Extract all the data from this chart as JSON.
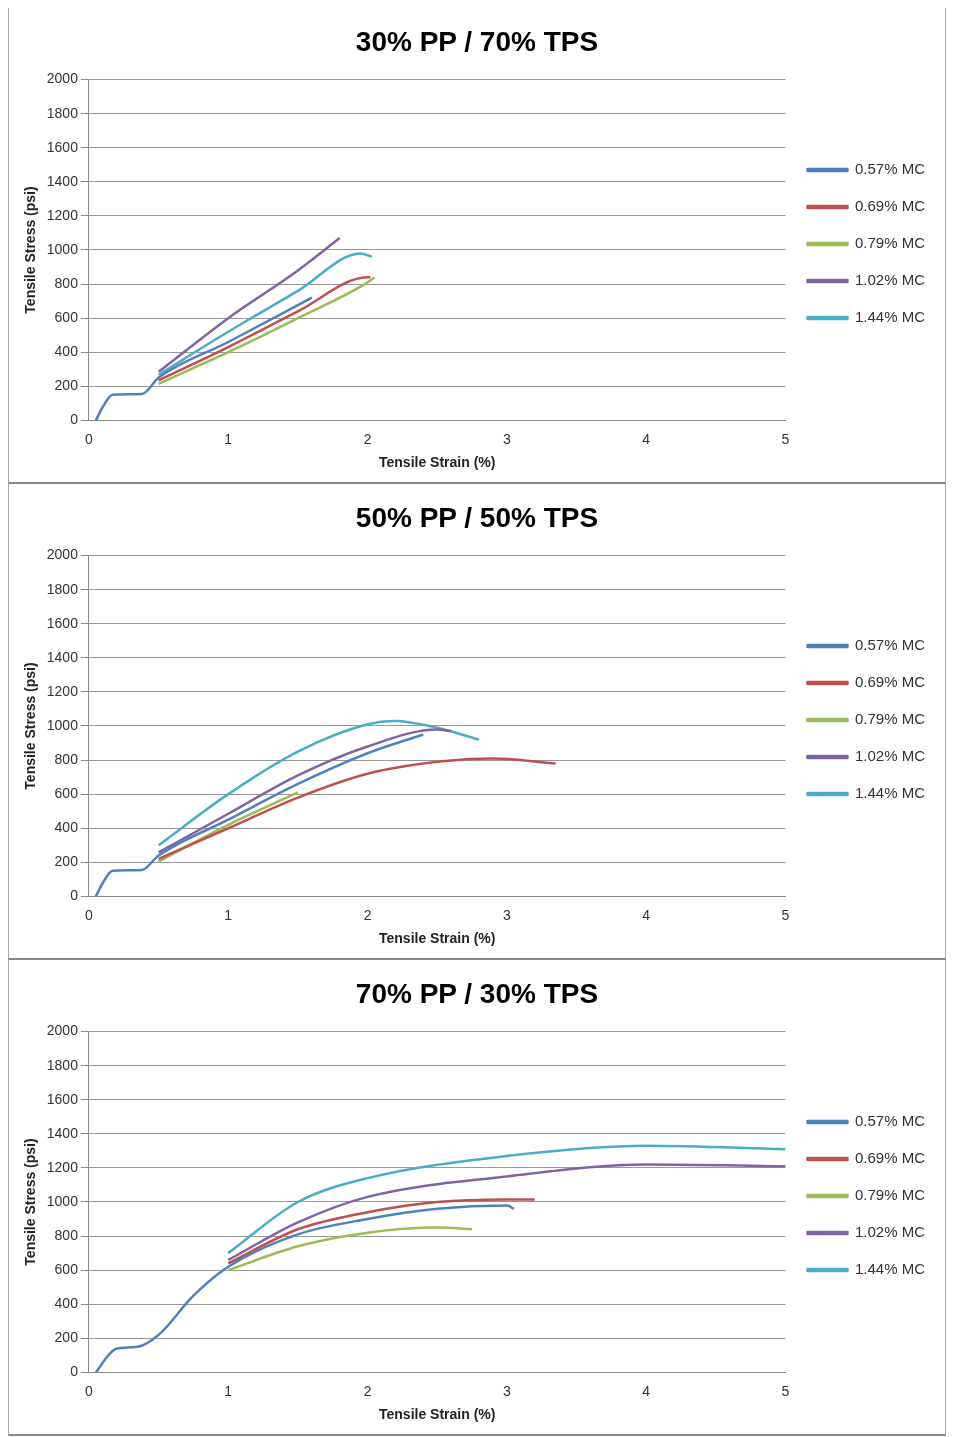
{
  "chart_data": [
    {
      "type": "line",
      "title": "30% PP / 70% TPS",
      "xlabel": "Tensile Strain (%)",
      "ylabel": "Tensile Stress (psi)",
      "xlim": [
        0,
        5
      ],
      "xticks": [
        0,
        1,
        2,
        3,
        4,
        5
      ],
      "ylim": [
        0,
        2000
      ],
      "yticks": [
        0,
        200,
        400,
        600,
        800,
        1000,
        1200,
        1400,
        1600,
        1800,
        2000
      ],
      "grid": "y",
      "legend": "right",
      "marker": "none",
      "series": [
        {
          "name": "0.57% MC",
          "color": "#4f81bd",
          "x": [
            0.05,
            0.1,
            0.17,
            0.38,
            0.5,
            1,
            1.6
          ],
          "values": [
            0,
            80,
            150,
            155,
            250,
            460,
            720
          ]
        },
        {
          "name": "0.69% MC",
          "color": "#c0504d",
          "x": [
            0.5,
            1,
            1.5,
            2,
            2.02
          ],
          "values": [
            235,
            430,
            640,
            840,
            840
          ]
        },
        {
          "name": "0.79% MC",
          "color": "#9bbb59",
          "x": [
            0.5,
            1,
            1.5,
            2,
            2.05
          ],
          "values": [
            215,
            400,
            600,
            810,
            840
          ]
        },
        {
          "name": "1.02% MC",
          "color": "#8064a2",
          "x": [
            0.5,
            1,
            1.5,
            1.8
          ],
          "values": [
            285,
            600,
            880,
            1070
          ]
        },
        {
          "name": "1.44% MC",
          "color": "#4bacc6",
          "x": [
            0.5,
            1,
            1.5,
            1.95,
            2.03
          ],
          "values": [
            268,
            520,
            760,
            980,
            960
          ]
        }
      ]
    },
    {
      "type": "line",
      "title": "50% PP / 50% TPS",
      "xlabel": "Tensile Strain (%)",
      "ylabel": "Tensile Stress (psi)",
      "xlim": [
        0,
        5
      ],
      "xticks": [
        0,
        1,
        2,
        3,
        4,
        5
      ],
      "ylim": [
        0,
        2000
      ],
      "yticks": [
        0,
        200,
        400,
        600,
        800,
        1000,
        1200,
        1400,
        1600,
        1800,
        2000
      ],
      "grid": "y",
      "legend": "right",
      "marker": "none",
      "series": [
        {
          "name": "0.57% MC",
          "color": "#4f81bd",
          "x": [
            0.05,
            0.1,
            0.17,
            0.38,
            0.5,
            1,
            1.5,
            2,
            2.4
          ],
          "values": [
            0,
            80,
            150,
            155,
            240,
            450,
            660,
            840,
            950
          ]
        },
        {
          "name": "0.69% MC",
          "color": "#c0504d",
          "x": [
            0.5,
            1,
            1.5,
            2,
            2.5,
            2.9,
            3.35
          ],
          "values": [
            220,
            400,
            580,
            720,
            790,
            810,
            780
          ]
        },
        {
          "name": "0.79% MC",
          "color": "#9bbb59",
          "x": [
            0.5,
            1,
            1.5
          ],
          "values": [
            205,
            420,
            610
          ]
        },
        {
          "name": "1.02% MC",
          "color": "#8064a2",
          "x": [
            0.5,
            1,
            1.5,
            2,
            2.5,
            2.6
          ],
          "values": [
            258,
            485,
            710,
            880,
            980,
            970
          ]
        },
        {
          "name": "1.44% MC",
          "color": "#4bacc6",
          "x": [
            0.5,
            1,
            1.5,
            2,
            2.2,
            2.5,
            2.8
          ],
          "values": [
            300,
            600,
            850,
            1010,
            1030,
            990,
            920
          ]
        }
      ]
    },
    {
      "type": "line",
      "title": "70% PP / 30% TPS",
      "xlabel": "Tensile Strain (%)",
      "ylabel": "Tensile Stress (psi)",
      "xlim": [
        0,
        5
      ],
      "xticks": [
        0,
        1,
        2,
        3,
        4,
        5
      ],
      "ylim": [
        0,
        2000
      ],
      "yticks": [
        0,
        200,
        400,
        600,
        800,
        1000,
        1200,
        1400,
        1600,
        1800,
        2000
      ],
      "grid": "y",
      "legend": "right",
      "marker": "none",
      "series": [
        {
          "name": "0.57% MC",
          "color": "#4f81bd",
          "x": [
            0.05,
            0.15,
            0.2,
            0.35,
            0.5,
            0.75,
            1,
            1.5,
            2,
            2.5,
            3,
            3.05
          ],
          "values": [
            0,
            110,
            140,
            150,
            220,
            450,
            620,
            810,
            900,
            960,
            980,
            960
          ]
        },
        {
          "name": "0.69% MC",
          "color": "#c0504d",
          "x": [
            1,
            1.5,
            2,
            2.5,
            3,
            3.2
          ],
          "values": [
            640,
            840,
            940,
            1000,
            1015,
            1015
          ]
        },
        {
          "name": "0.79% MC",
          "color": "#9bbb59",
          "x": [
            1,
            1.5,
            2,
            2.5,
            2.75
          ],
          "values": [
            600,
            740,
            820,
            850,
            840
          ]
        },
        {
          "name": "1.02% MC",
          "color": "#8064a2",
          "x": [
            1,
            1.5,
            2,
            3,
            4,
            5
          ],
          "values": [
            660,
            880,
            1030,
            1150,
            1220,
            1210
          ]
        },
        {
          "name": "1.44% MC",
          "color": "#4bacc6",
          "x": [
            1,
            1.5,
            2,
            3,
            4,
            5
          ],
          "values": [
            700,
            1000,
            1140,
            1270,
            1330,
            1310
          ]
        }
      ]
    }
  ]
}
